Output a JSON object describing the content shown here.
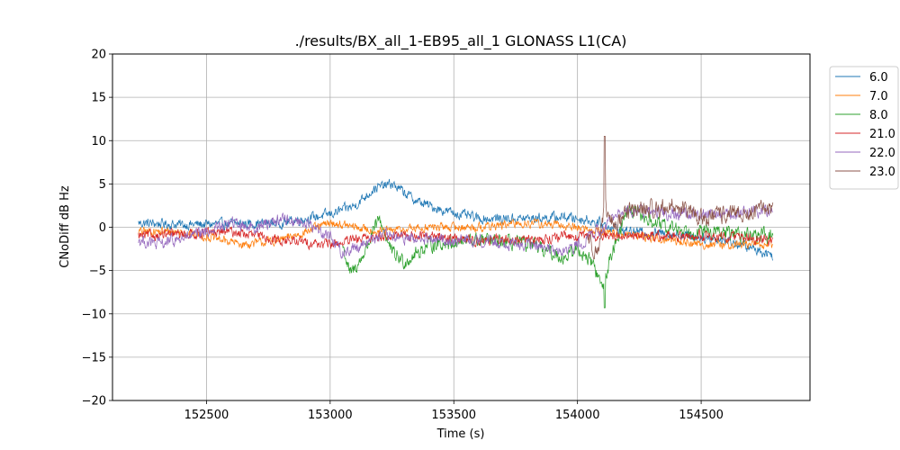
{
  "chart_data": {
    "type": "line",
    "title": "./results/BX_all_1-EB95_all_1 GLONASS L1(CA)",
    "xlabel": "Time (s)",
    "ylabel": "CNoDiff dB Hz",
    "xlim": [
      152120,
      154940
    ],
    "ylim": [
      -20,
      20
    ],
    "xticks": [
      152500,
      153000,
      153500,
      154000,
      154500
    ],
    "yticks": [
      -20,
      -15,
      -10,
      -5,
      0,
      5,
      10,
      15,
      20
    ],
    "grid": true,
    "legend_position": "upper right, outside plot",
    "series": [
      {
        "name": "6.0",
        "color": "#1f77b4",
        "x": [
          152225,
          152400,
          152600,
          152800,
          153000,
          153100,
          153180,
          153250,
          153300,
          153350,
          153450,
          153600,
          153800,
          153950,
          154050,
          154200,
          154400,
          154600,
          154790
        ],
        "y": [
          0.5,
          0.3,
          0.4,
          0.5,
          1.5,
          2.5,
          4.5,
          5.0,
          4.0,
          3.0,
          2.0,
          1.0,
          1.0,
          1.2,
          0.8,
          -0.5,
          -0.8,
          -1.5,
          -3.2
        ],
        "noise": 0.9
      },
      {
        "name": "7.0",
        "color": "#ff7f0e",
        "x": [
          152225,
          152400,
          152650,
          152800,
          153000,
          153200,
          153400,
          153600,
          153800,
          154000,
          154100,
          154250,
          154500,
          154790
        ],
        "y": [
          -0.5,
          -0.5,
          -2.0,
          -1.5,
          0.5,
          -0.5,
          0.0,
          0.0,
          0.5,
          0.0,
          -0.5,
          -1.0,
          -2.0,
          -2.0
        ],
        "noise": 0.8
      },
      {
        "name": "8.0",
        "color": "#2ca02c",
        "x": [
          153050,
          153080,
          153120,
          153160,
          153200,
          153250,
          153300,
          153400,
          153600,
          153800,
          153950,
          154000,
          154060,
          154100,
          154150,
          154200,
          154350,
          154500,
          154790
        ],
        "y": [
          -2.0,
          -5.5,
          -4.0,
          -1.5,
          1.0,
          -3.0,
          -4.0,
          -2.0,
          -1.5,
          -2.0,
          -3.5,
          -2.5,
          -4.0,
          -7.0,
          -2.0,
          2.0,
          0.0,
          -0.5,
          -1.0
        ],
        "noise": 1.3
      },
      {
        "name": "21.0",
        "color": "#d62728",
        "x": [
          152225,
          152400,
          152600,
          152800,
          153000,
          153200,
          153400,
          153600,
          153800,
          154000,
          154200,
          154400,
          154600,
          154790
        ],
        "y": [
          -1.0,
          -0.8,
          -0.5,
          -1.5,
          -2.0,
          -1.0,
          -1.0,
          -1.5,
          -1.5,
          -1.0,
          -1.0,
          -1.0,
          -1.0,
          -1.5
        ],
        "noise": 0.9
      },
      {
        "name": "22.0",
        "color": "#9467bd",
        "x": [
          152225,
          152300,
          152450,
          152600,
          152700,
          152800,
          152900,
          153000,
          153050,
          153200,
          153400,
          153600,
          153800,
          153950,
          154050,
          154200,
          154400,
          154600,
          154790
        ],
        "y": [
          -1.5,
          -2.0,
          -1.0,
          0.5,
          0.0,
          1.0,
          0.5,
          -1.0,
          -3.0,
          -1.0,
          -1.5,
          -1.5,
          -2.0,
          -3.0,
          -1.0,
          2.0,
          1.5,
          1.5,
          2.0
        ],
        "noise": 1.1
      },
      {
        "name": "23.0",
        "color": "#8c564b",
        "x": [
          154040,
          154080,
          154110,
          154150,
          154200,
          154300,
          154400,
          154500,
          154600,
          154700,
          154790
        ],
        "y": [
          -1.0,
          -3.0,
          2.0,
          0.0,
          2.0,
          2.0,
          2.5,
          1.0,
          1.5,
          1.5,
          2.5
        ],
        "noise": 1.6
      }
    ]
  }
}
